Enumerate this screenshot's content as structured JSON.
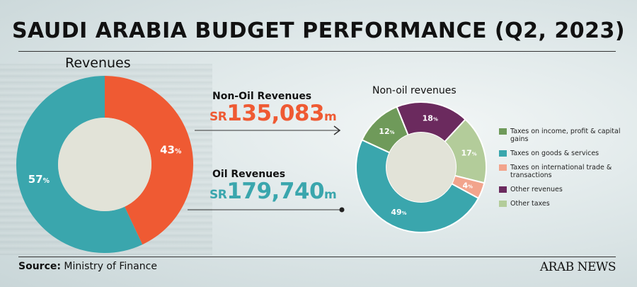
{
  "title": "SAUDI ARABIA BUDGET PERFORMANCE (Q2, 2023)",
  "revenues_title": "Revenues",
  "callouts": {
    "non_oil": {
      "label": "Non-Oil Revenues",
      "currency": "SR",
      "amount": "135,083",
      "unit": "m"
    },
    "oil": {
      "label": "Oil Revenues",
      "currency": "SR",
      "amount": "179,740",
      "unit": "m"
    }
  },
  "source": {
    "label": "Source:",
    "text": " Ministry of Finance"
  },
  "brand": "ARAB NEWS",
  "colors": {
    "non_oil": "#ef5a33",
    "oil": "#3aa6ad",
    "hole": "#e2e3d8",
    "income_tax": "#6f9a5a",
    "goods_services": "#3aa6ad",
    "intl_trade": "#f2a48c",
    "other_revenues": "#6b2a5e",
    "other_taxes": "#b3cc9a"
  },
  "chart_data": [
    {
      "type": "pie",
      "title": "Revenues",
      "categories": [
        "Non-Oil Revenues",
        "Oil Revenues"
      ],
      "values": [
        43,
        57
      ],
      "labels": [
        "43",
        "57"
      ],
      "label_unit": "%",
      "amounts": [
        "SR135,083m",
        "SR179,740m"
      ]
    },
    {
      "type": "pie",
      "title": "Non-oil revenues",
      "categories": [
        "Other revenues",
        "Other taxes",
        "Taxes on international trade & transactions",
        "Taxes on goods & services",
        "Taxes on income, profit & capital gains"
      ],
      "values": [
        18,
        17,
        4,
        49,
        12
      ],
      "labels": [
        "18",
        "17",
        "4",
        "49",
        "12"
      ],
      "label_unit": "%",
      "legend": [
        "Taxes on income, profit & capital gains",
        "Taxes on goods & services",
        "Taxes on international trade & transactions",
        "Other revenues",
        "Other taxes"
      ],
      "legend_placement": "right"
    }
  ]
}
